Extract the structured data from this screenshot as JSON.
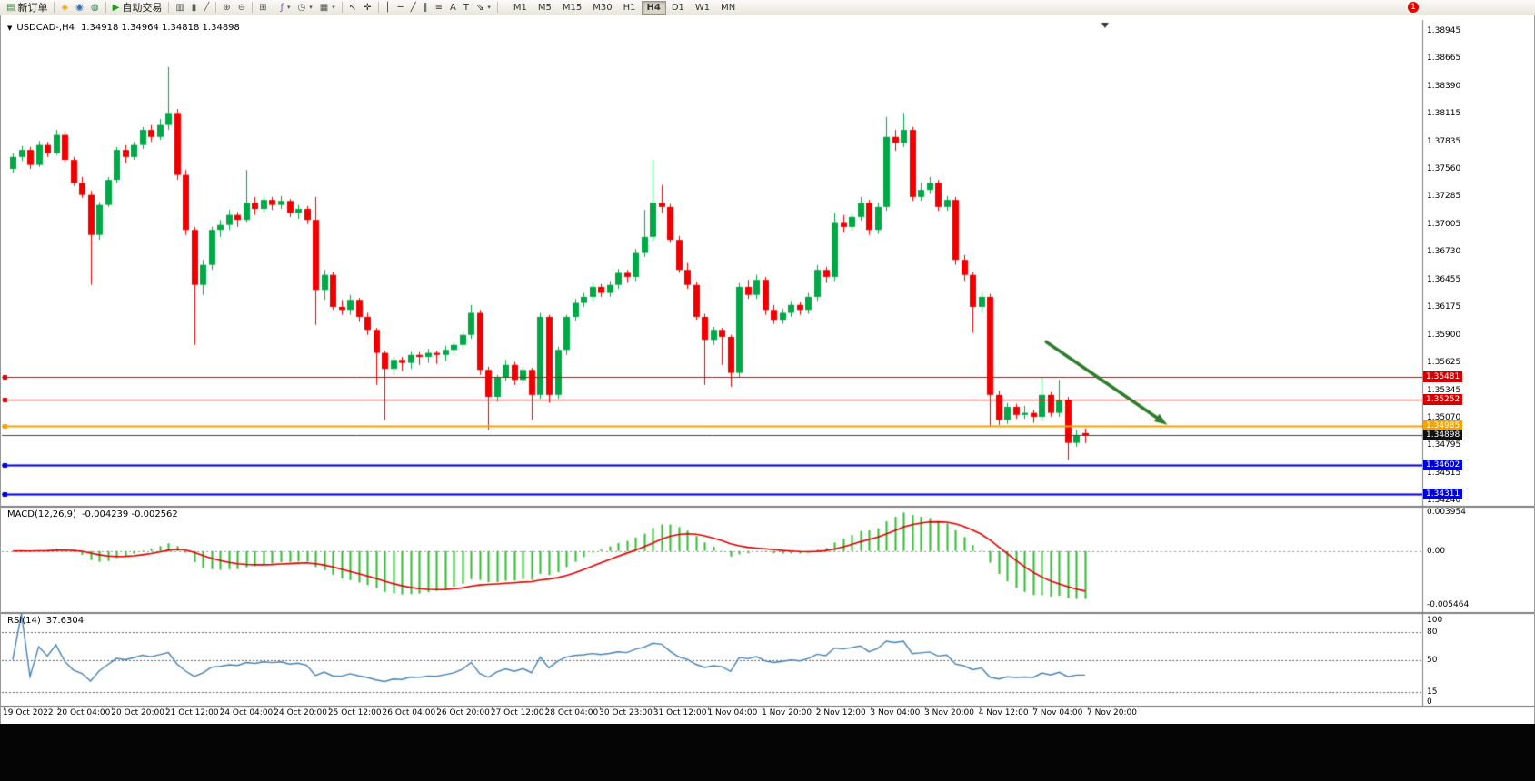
{
  "toolbar": {
    "dropdown_glyph": "▾",
    "notification_badge": "1",
    "items": [
      {
        "name": "new-order-button",
        "glyph": "▤",
        "glyph_name": "new-order-icon",
        "color": "#3c8c3c",
        "label": "新订单"
      },
      {
        "type": "sep"
      },
      {
        "name": "quick-trade-button",
        "glyph": "◈",
        "glyph_name": "quick-trade-icon",
        "color": "#dfa000"
      },
      {
        "name": "chat-button",
        "glyph": "◉",
        "glyph_name": "chat-icon",
        "color": "#3a6ea5"
      },
      {
        "name": "support-button",
        "glyph": "◍",
        "glyph_name": "headset-icon",
        "color": "#2e8b57"
      },
      {
        "type": "sep"
      },
      {
        "name": "autotrading-button",
        "glyph": "▶",
        "glyph_name": "autotrading-play-icon",
        "color": "#17a317",
        "label": "自动交易"
      },
      {
        "type": "sep"
      },
      {
        "name": "bar-chart-button",
        "glyph": "▥",
        "glyph_name": "bar-chart-icon",
        "color": "#555555"
      },
      {
        "name": "candlestick-chart-button",
        "glyph": "▮",
        "glyph_name": "candlestick-chart-icon",
        "color": "#555555"
      },
      {
        "name": "line-chart-button",
        "glyph": "╱",
        "glyph_name": "line-chart-icon",
        "color": "#555555"
      },
      {
        "type": "sep"
      },
      {
        "name": "zoom-in-button",
        "glyph": "⊕",
        "glyph_name": "zoom-in-icon",
        "color": "#555555"
      },
      {
        "name": "zoom-out-button",
        "glyph": "⊖",
        "glyph_name": "zoom-out-icon",
        "color": "#555555"
      },
      {
        "type": "sep"
      },
      {
        "name": "tile-windows-button",
        "glyph": "⊞",
        "glyph_name": "tile-windows-icon",
        "color": "#555555"
      },
      {
        "type": "sep"
      },
      {
        "name": "indicators-button",
        "glyph": "ƒ",
        "glyph_name": "indicators-icon",
        "color": "#7a4a9a",
        "dropdown": true
      },
      {
        "name": "periods-button",
        "glyph": "◷",
        "glyph_name": "clock-icon",
        "color": "#555555",
        "dropdown": true
      },
      {
        "name": "templates-button",
        "glyph": "▦",
        "glyph_name": "template-icon",
        "color": "#555555",
        "dropdown": true
      },
      {
        "type": "sep"
      },
      {
        "name": "cursor-button",
        "glyph": "↖",
        "glyph_name": "cursor-icon",
        "color": "#333333"
      },
      {
        "name": "crosshair-button",
        "glyph": "✛",
        "glyph_name": "crosshair-icon",
        "color": "#333333"
      },
      {
        "type": "sep"
      },
      {
        "name": "vertical-line-button",
        "glyph": "│",
        "glyph_name": "vertical-line-icon",
        "color": "#333333"
      },
      {
        "name": "horizontal-line-button",
        "glyph": "─",
        "glyph_name": "horizontal-line-icon",
        "color": "#333333"
      },
      {
        "name": "trendline-button",
        "glyph": "╱",
        "glyph_name": "trendline-icon",
        "color": "#333333"
      },
      {
        "name": "channel-button",
        "glyph": "∥",
        "glyph_name": "channel-icon",
        "color": "#333333"
      },
      {
        "name": "fibonacci-button",
        "glyph": "≡",
        "glyph_name": "fibonacci-icon",
        "color": "#333333"
      },
      {
        "name": "text-button",
        "glyph": "A",
        "glyph_name": "text-icon",
        "color": "#333333"
      },
      {
        "name": "text-label-button",
        "glyph": "T",
        "glyph_name": "text-label-icon",
        "color": "#333333"
      },
      {
        "name": "arrows-button",
        "glyph": "⇘",
        "glyph_name": "arrow-objects-icon",
        "color": "#333333",
        "dropdown": true
      },
      {
        "type": "sep"
      }
    ],
    "timeframes": [
      "M1",
      "M5",
      "M15",
      "M30",
      "H1",
      "H4",
      "D1",
      "W1",
      "MN"
    ],
    "active_timeframe": "H4"
  },
  "chart": {
    "menu_icon": "▼",
    "title": "USDCAD-,H4",
    "ohlc_text": "1.34918 1.34964 1.34818 1.34898",
    "macd_label": "MACD(12,26,9)",
    "macd_values": "-0.004239 -0.002562",
    "rsi_label": "RSI(14)",
    "rsi_value": "37.6304"
  },
  "chart_data": {
    "type": "candlestick",
    "symbol": "USDCAD-",
    "timeframe": "H4",
    "ylim": [
      1.3419,
      1.3905
    ],
    "price_ticks": [
      1.38945,
      1.38665,
      1.3839,
      1.38115,
      1.37835,
      1.3756,
      1.37285,
      1.37005,
      1.3673,
      1.36455,
      1.36175,
      1.359,
      1.35625,
      1.35345,
      1.3507,
      1.34795,
      1.34515,
      1.3424
    ],
    "ohlc": [
      [
        1.3756,
        1.3772,
        1.3752,
        1.3768
      ],
      [
        1.3768,
        1.3779,
        1.3764,
        1.3775
      ],
      [
        1.3775,
        1.3778,
        1.3756,
        1.376
      ],
      [
        1.376,
        1.3784,
        1.3758,
        1.378
      ],
      [
        1.378,
        1.3783,
        1.3768,
        1.3772
      ],
      [
        1.3772,
        1.3795,
        1.377,
        1.379
      ],
      [
        1.379,
        1.3794,
        1.3762,
        1.3765
      ],
      [
        1.3765,
        1.3768,
        1.3739,
        1.3742
      ],
      [
        1.3742,
        1.3748,
        1.3727,
        1.373
      ],
      [
        1.373,
        1.3734,
        1.364,
        1.369
      ],
      [
        1.369,
        1.3723,
        1.3685,
        1.372
      ],
      [
        1.372,
        1.3748,
        1.3718,
        1.3745
      ],
      [
        1.3745,
        1.3778,
        1.3742,
        1.3775
      ],
      [
        1.3775,
        1.378,
        1.3762,
        1.3768
      ],
      [
        1.3768,
        1.3783,
        1.3765,
        1.378
      ],
      [
        1.378,
        1.3798,
        1.3776,
        1.3795
      ],
      [
        1.3795,
        1.38,
        1.3783,
        1.3788
      ],
      [
        1.3788,
        1.3806,
        1.3785,
        1.38
      ],
      [
        1.38,
        1.3858,
        1.3795,
        1.3812
      ],
      [
        1.3812,
        1.3816,
        1.3745,
        1.375
      ],
      [
        1.375,
        1.3755,
        1.369,
        1.3695
      ],
      [
        1.3695,
        1.3698,
        1.358,
        1.364
      ],
      [
        1.364,
        1.3665,
        1.363,
        1.366
      ],
      [
        1.366,
        1.3698,
        1.3655,
        1.3695
      ],
      [
        1.3695,
        1.3705,
        1.3688,
        1.37
      ],
      [
        1.37,
        1.3715,
        1.3695,
        1.371
      ],
      [
        1.371,
        1.3713,
        1.3698,
        1.3705
      ],
      [
        1.3705,
        1.3755,
        1.3702,
        1.3722
      ],
      [
        1.3722,
        1.3728,
        1.371,
        1.3716
      ],
      [
        1.3716,
        1.3729,
        1.3712,
        1.3725
      ],
      [
        1.3725,
        1.3728,
        1.3715,
        1.372
      ],
      [
        1.372,
        1.3729,
        1.3716,
        1.3724
      ],
      [
        1.3724,
        1.3726,
        1.3708,
        1.3712
      ],
      [
        1.3712,
        1.372,
        1.3706,
        1.3716
      ],
      [
        1.3716,
        1.3719,
        1.3701,
        1.3705
      ],
      [
        1.3705,
        1.3728,
        1.36,
        1.3635
      ],
      [
        1.3635,
        1.3655,
        1.3625,
        1.365
      ],
      [
        1.365,
        1.3653,
        1.3615,
        1.3618
      ],
      [
        1.3618,
        1.3625,
        1.361,
        1.3615
      ],
      [
        1.3615,
        1.363,
        1.361,
        1.3625
      ],
      [
        1.3625,
        1.3627,
        1.3603,
        1.3608
      ],
      [
        1.3608,
        1.3612,
        1.359,
        1.3595
      ],
      [
        1.3595,
        1.3597,
        1.354,
        1.3572
      ],
      [
        1.3572,
        1.3574,
        1.3505,
        1.3556
      ],
      [
        1.3556,
        1.3568,
        1.355,
        1.3565
      ],
      [
        1.3565,
        1.3568,
        1.3554,
        1.3562
      ],
      [
        1.3562,
        1.3573,
        1.3556,
        1.357
      ],
      [
        1.357,
        1.3573,
        1.356,
        1.3568
      ],
      [
        1.3568,
        1.3576,
        1.3562,
        1.3572
      ],
      [
        1.3572,
        1.3574,
        1.3561,
        1.357
      ],
      [
        1.357,
        1.3579,
        1.3564,
        1.3575
      ],
      [
        1.3575,
        1.3583,
        1.357,
        1.358
      ],
      [
        1.358,
        1.3593,
        1.3576,
        1.359
      ],
      [
        1.359,
        1.362,
        1.3586,
        1.3612
      ],
      [
        1.3612,
        1.3615,
        1.355,
        1.3555
      ],
      [
        1.3555,
        1.3558,
        1.3495,
        1.3528
      ],
      [
        1.3528,
        1.355,
        1.3523,
        1.3548
      ],
      [
        1.3548,
        1.3565,
        1.3544,
        1.356
      ],
      [
        1.356,
        1.3563,
        1.354,
        1.3545
      ],
      [
        1.3545,
        1.3558,
        1.3541,
        1.3555
      ],
      [
        1.3555,
        1.3557,
        1.3505,
        1.353
      ],
      [
        1.353,
        1.3612,
        1.3526,
        1.3608
      ],
      [
        1.3608,
        1.361,
        1.3522,
        1.353
      ],
      [
        1.353,
        1.3578,
        1.3526,
        1.3575
      ],
      [
        1.3575,
        1.361,
        1.357,
        1.3608
      ],
      [
        1.3608,
        1.3626,
        1.3604,
        1.3622
      ],
      [
        1.3622,
        1.3632,
        1.3618,
        1.3628
      ],
      [
        1.3628,
        1.3642,
        1.3624,
        1.3638
      ],
      [
        1.3638,
        1.3641,
        1.3628,
        1.3632
      ],
      [
        1.3632,
        1.3644,
        1.3628,
        1.364
      ],
      [
        1.364,
        1.3656,
        1.3636,
        1.3652
      ],
      [
        1.3652,
        1.3655,
        1.3642,
        1.3648
      ],
      [
        1.3648,
        1.3676,
        1.3644,
        1.3672
      ],
      [
        1.3672,
        1.3715,
        1.3668,
        1.3688
      ],
      [
        1.3688,
        1.3765,
        1.3684,
        1.3722
      ],
      [
        1.3722,
        1.374,
        1.3712,
        1.3718
      ],
      [
        1.3718,
        1.3721,
        1.3682,
        1.3685
      ],
      [
        1.3685,
        1.3689,
        1.3652,
        1.3655
      ],
      [
        1.3655,
        1.3662,
        1.3636,
        1.364
      ],
      [
        1.364,
        1.3643,
        1.3605,
        1.3608
      ],
      [
        1.3608,
        1.3611,
        1.354,
        1.3585
      ],
      [
        1.3585,
        1.3598,
        1.358,
        1.3595
      ],
      [
        1.3595,
        1.3597,
        1.356,
        1.3588
      ],
      [
        1.3588,
        1.359,
        1.3538,
        1.3552
      ],
      [
        1.3552,
        1.3642,
        1.3548,
        1.3638
      ],
      [
        1.3638,
        1.3645,
        1.3626,
        1.363
      ],
      [
        1.363,
        1.365,
        1.3626,
        1.3645
      ],
      [
        1.3645,
        1.3648,
        1.361,
        1.3615
      ],
      [
        1.3615,
        1.362,
        1.3601,
        1.3605
      ],
      [
        1.3605,
        1.3616,
        1.3601,
        1.3612
      ],
      [
        1.3612,
        1.3624,
        1.3608,
        1.362
      ],
      [
        1.362,
        1.3623,
        1.361,
        1.3615
      ],
      [
        1.3615,
        1.3632,
        1.3611,
        1.3628
      ],
      [
        1.3628,
        1.366,
        1.3624,
        1.3655
      ],
      [
        1.3655,
        1.3658,
        1.3642,
        1.3648
      ],
      [
        1.3648,
        1.3712,
        1.3644,
        1.3702
      ],
      [
        1.3702,
        1.371,
        1.3692,
        1.3698
      ],
      [
        1.3698,
        1.3712,
        1.3694,
        1.3708
      ],
      [
        1.3708,
        1.3728,
        1.3704,
        1.3722
      ],
      [
        1.3722,
        1.3725,
        1.369,
        1.3695
      ],
      [
        1.3695,
        1.3722,
        1.3691,
        1.3718
      ],
      [
        1.3718,
        1.3808,
        1.3714,
        1.3788
      ],
      [
        1.3788,
        1.3795,
        1.3774,
        1.3782
      ],
      [
        1.3782,
        1.3812,
        1.3778,
        1.3795
      ],
      [
        1.3795,
        1.3798,
        1.3724,
        1.3728
      ],
      [
        1.3728,
        1.3742,
        1.3724,
        1.3735
      ],
      [
        1.3735,
        1.3748,
        1.3731,
        1.3742
      ],
      [
        1.3742,
        1.3745,
        1.3714,
        1.3718
      ],
      [
        1.3718,
        1.3729,
        1.3714,
        1.3725
      ],
      [
        1.3725,
        1.3728,
        1.366,
        1.3665
      ],
      [
        1.3665,
        1.367,
        1.3644,
        1.365
      ],
      [
        1.365,
        1.3653,
        1.3592,
        1.3618
      ],
      [
        1.3618,
        1.3632,
        1.3612,
        1.3628
      ],
      [
        1.3628,
        1.3631,
        1.3498,
        1.353
      ],
      [
        1.353,
        1.3534,
        1.35,
        1.3505
      ],
      [
        1.3505,
        1.3522,
        1.3501,
        1.3518
      ],
      [
        1.3518,
        1.3521,
        1.3506,
        1.351
      ],
      [
        1.351,
        1.3519,
        1.3506,
        1.3512
      ],
      [
        1.3512,
        1.3515,
        1.3502,
        1.3508
      ],
      [
        1.3508,
        1.3548,
        1.3504,
        1.353
      ],
      [
        1.353,
        1.3533,
        1.3508,
        1.3512
      ],
      [
        1.3512,
        1.3545,
        1.3508,
        1.3525
      ],
      [
        1.3525,
        1.3528,
        1.3465,
        1.3482
      ],
      [
        1.3482,
        1.3495,
        1.3478,
        1.349
      ],
      [
        1.34918,
        1.34964,
        1.34818,
        1.34898
      ]
    ],
    "time_labels": [
      "19 Oct 2022",
      "20 Oct 04:00",
      "20 Oct 20:00",
      "21 Oct 12:00",
      "24 Oct 04:00",
      "24 Oct 20:00",
      "25 Oct 12:00",
      "26 Oct 04:00",
      "26 Oct 20:00",
      "27 Oct 12:00",
      "28 Oct 04:00",
      "30 Oct 23:00",
      "31 Oct 12:00",
      "1 Nov 04:00",
      "1 Nov 20:00",
      "2 Nov 12:00",
      "3 Nov 04:00",
      "3 Nov 20:00",
      "4 Nov 12:00",
      "7 Nov 04:00",
      "7 Nov 20:00"
    ],
    "levels": [
      {
        "price": 1.35481,
        "label": "1.35481",
        "color": "#e60000",
        "tag_bg": "#d40000",
        "width": 1
      },
      {
        "price": 1.35252,
        "label": "1.35252",
        "color": "#e60000",
        "tag_bg": "#d40000",
        "width": 1
      },
      {
        "price": 1.34985,
        "label": "1.34985",
        "color": "#f5a300",
        "tag_bg": "#f5a300",
        "width": 2
      },
      {
        "price": 1.34602,
        "label": "1.34602",
        "color": "#0000d4",
        "tag_bg": "#0000d4",
        "width": 2
      },
      {
        "price": 1.34311,
        "label": "1.34311",
        "color": "#0000d4",
        "tag_bg": "#0000d4",
        "width": 2
      }
    ],
    "current_price": {
      "price": 1.34898,
      "label": "1.34898",
      "line_color": "#444444",
      "tag_bg": "#111111"
    },
    "arrow": {
      "i1": 119.5,
      "p1": 1.3583,
      "i2": 133.5,
      "p2": 1.35,
      "color": "#2d7d2d"
    },
    "shift_marker_i": 126.3,
    "colors": {
      "up": "#00a846",
      "down": "#f00000",
      "macd_hist": "#2ebd2e",
      "macd_signal": "#e00000",
      "rsi_line": "#4682b4"
    },
    "macd": {
      "ticks": [
        "0.003954",
        "0.00",
        "-0.005464"
      ],
      "tick_values": [
        0.003954,
        0,
        -0.005464
      ],
      "ylim": [
        -0.0062,
        0.0044
      ]
    },
    "rsi": {
      "ticks": [
        "100",
        "80",
        "50",
        "15",
        "0"
      ],
      "tick_values": [
        100,
        80,
        50,
        15,
        0
      ],
      "levels": [
        80,
        50,
        15
      ],
      "ylim": [
        0,
        100
      ]
    }
  }
}
